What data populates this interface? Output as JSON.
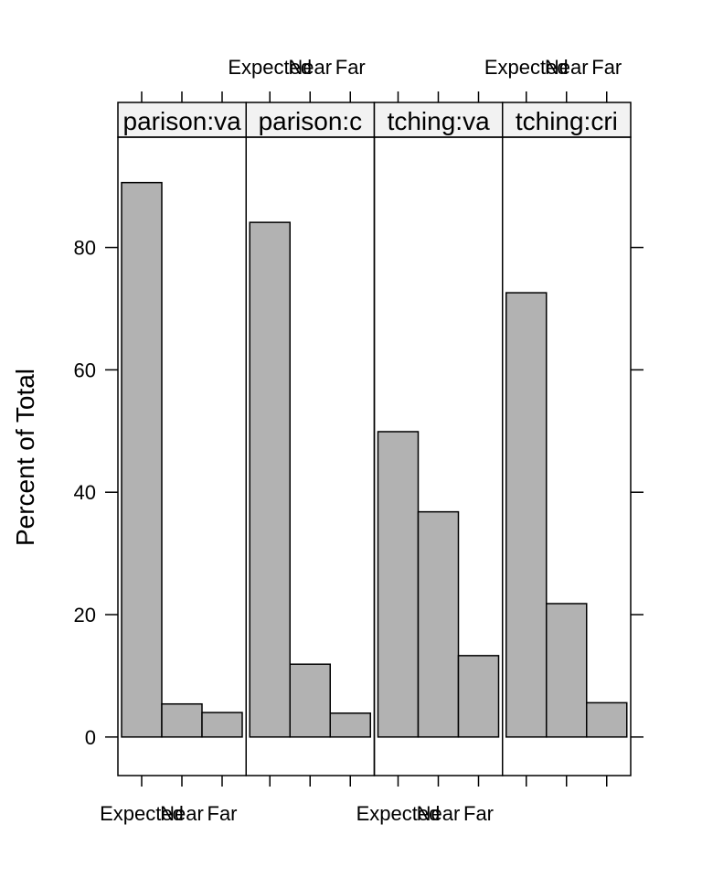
{
  "chart_data": {
    "type": "bar",
    "ylabel": "Percent of Total",
    "xlabel": "",
    "categories": [
      "Expected",
      "Near",
      "Far"
    ],
    "y_ticks": [
      0,
      20,
      40,
      60,
      80
    ],
    "ylim": [
      -6.3,
      103.7
    ],
    "panels": [
      {
        "strip": "parison:va",
        "values": [
          90.6,
          5.4,
          4.0
        ]
      },
      {
        "strip": "parison:c",
        "values": [
          84.1,
          11.9,
          3.9
        ]
      },
      {
        "strip": "tching:va",
        "values": [
          49.9,
          36.8,
          13.3
        ]
      },
      {
        "strip": "tching:cri",
        "values": [
          72.6,
          21.8,
          5.6
        ]
      }
    ],
    "bar_color": "#b2b2b2",
    "strip_color": "#f2f2f2",
    "grid": false
  }
}
